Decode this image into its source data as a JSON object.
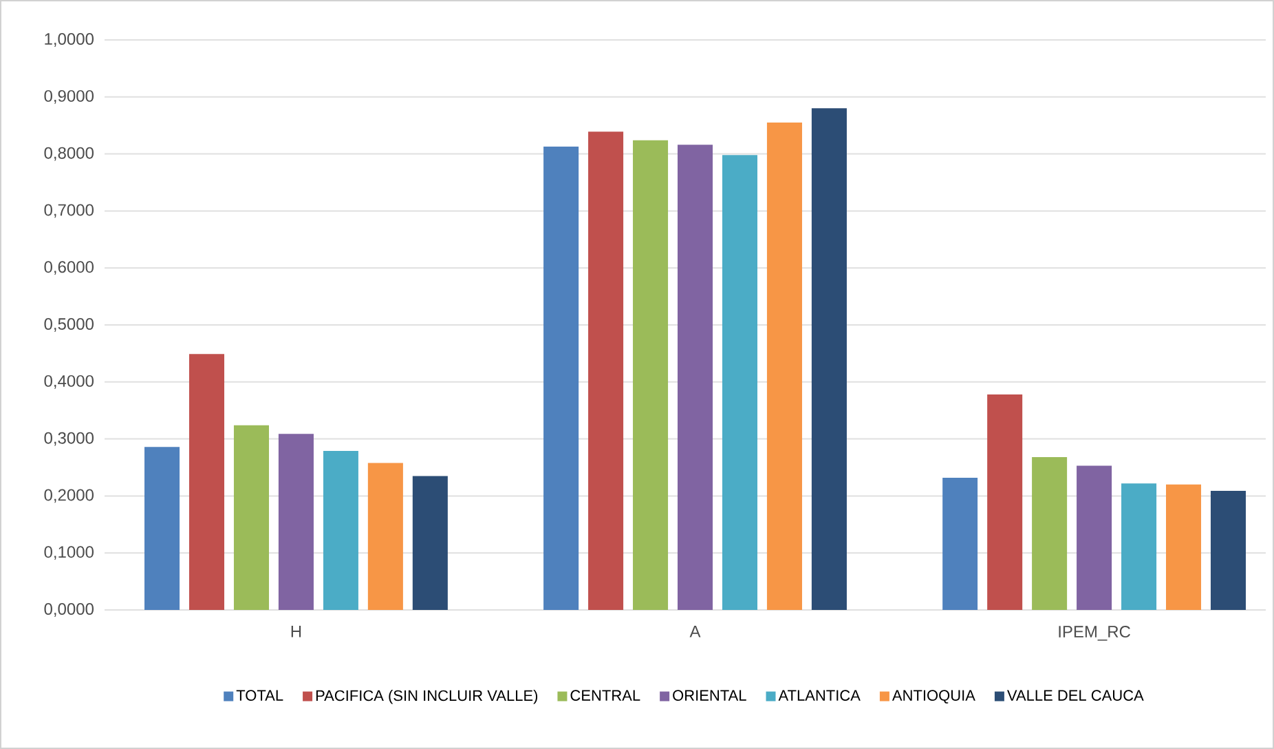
{
  "chart_data": {
    "type": "bar",
    "categories": [
      "H",
      "A",
      "IPEM_RC"
    ],
    "series": [
      {
        "name": "TOTAL",
        "color": "#4f81bd",
        "values": [
          0.286,
          0.813,
          0.232
        ]
      },
      {
        "name": "PACIFICA (SIN INCLUIR VALLE)",
        "color": "#c0504d",
        "values": [
          0.449,
          0.839,
          0.378
        ]
      },
      {
        "name": "CENTRAL",
        "color": "#9bbb59",
        "values": [
          0.324,
          0.824,
          0.268
        ]
      },
      {
        "name": "ORIENTAL",
        "color": "#8064a2",
        "values": [
          0.309,
          0.816,
          0.253
        ]
      },
      {
        "name": "ATLANTICA",
        "color": "#4bacc6",
        "values": [
          0.279,
          0.798,
          0.222
        ]
      },
      {
        "name": "ANTIOQUIA",
        "color": "#f79646",
        "values": [
          0.258,
          0.855,
          0.22
        ]
      },
      {
        "name": "VALLE DEL CAUCA",
        "color": "#2c4d75",
        "values": [
          0.235,
          0.88,
          0.209
        ]
      }
    ],
    "ylim": [
      0,
      1
    ],
    "yticks": [
      {
        "value": 0,
        "label": "0,0000"
      },
      {
        "value": 0.1,
        "label": "0,1000"
      },
      {
        "value": 0.2,
        "label": "0,2000"
      },
      {
        "value": 0.3,
        "label": "0,3000"
      },
      {
        "value": 0.4,
        "label": "0,4000"
      },
      {
        "value": 0.5,
        "label": "0,5000"
      },
      {
        "value": 0.6,
        "label": "0,6000"
      },
      {
        "value": 0.7,
        "label": "0,7000"
      },
      {
        "value": 0.8,
        "label": "0,8000"
      },
      {
        "value": 0.9,
        "label": "0,9000"
      },
      {
        "value": 1,
        "label": "1,0000"
      }
    ],
    "grid": "y",
    "legend": "bottom"
  }
}
